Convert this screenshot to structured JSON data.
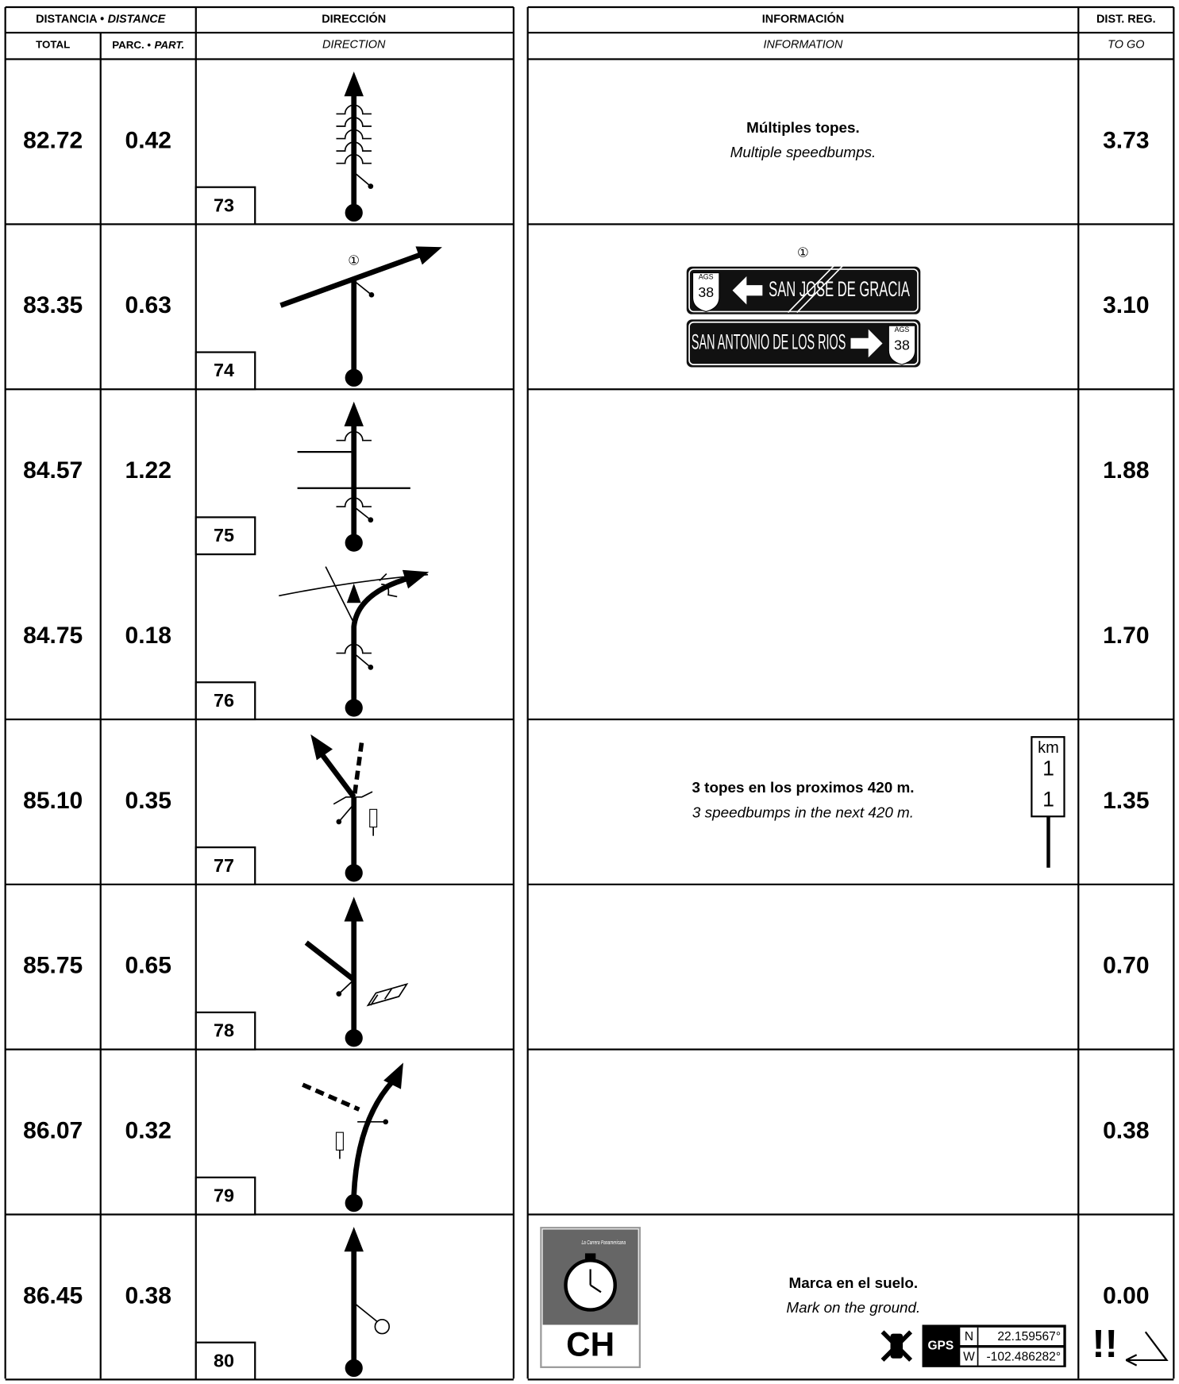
{
  "header": {
    "distance": "DISTANCIA •",
    "distance_en": "DISTANCE",
    "total": "TOTAL",
    "partial": "PARC. •",
    "partial_en": "PART.",
    "direction": "DIRECCIÓN",
    "direction_en": "DIRECTION",
    "information": "INFORMACIÓN",
    "information_en": "INFORMATION",
    "to_go": "DIST. REG.",
    "to_go_en": "TO GO"
  },
  "entries": [
    {
      "number": "73",
      "total": "82.72",
      "partial": "0.42",
      "to_go": "3.73",
      "info": "Múltiples topes.",
      "info_en": "Multiple speedbumps."
    },
    {
      "number": "74",
      "total": "83.35",
      "partial": "0.63",
      "to_go": "3.10",
      "marker": "①",
      "sign": {
        "marker": "①",
        "top": {
          "state": "AGS",
          "route": "38",
          "destination": "SAN JOSE DE GRACIA"
        },
        "bottom": {
          "state": "AGS",
          "route": "38",
          "destination": "SAN ANTONIO DE LOS RIOS"
        }
      }
    },
    {
      "number": "75",
      "total": "84.57",
      "partial": "1.22",
      "to_go": "1.88"
    },
    {
      "number": "76",
      "total": "84.75",
      "partial": "0.18",
      "to_go": "1.70"
    },
    {
      "number": "77",
      "total": "85.10",
      "partial": "0.35",
      "to_go": "1.35",
      "info": "3 topes en los proximos 420 m.",
      "info_en": "3 speedbumps in the next 420 m.",
      "km_post": {
        "unit": "km",
        "line1": "1",
        "line2": "1"
      }
    },
    {
      "number": "78",
      "total": "85.75",
      "partial": "0.65",
      "to_go": "0.70"
    },
    {
      "number": "79",
      "total": "86.07",
      "partial": "0.32",
      "to_go": "0.38"
    },
    {
      "number": "80",
      "total": "86.45",
      "partial": "0.38",
      "to_go": "0.00",
      "info": "Marca en el suelo.",
      "info_en": "Mark on the ground.",
      "control": {
        "event": "La Carrera Panamericana",
        "code": "CH"
      },
      "gps": {
        "label": "GPS",
        "lat_ref": "N",
        "lat": "22.159567°",
        "lon_ref": "W",
        "lon": "-102.486282°"
      },
      "warning": "!!"
    }
  ]
}
